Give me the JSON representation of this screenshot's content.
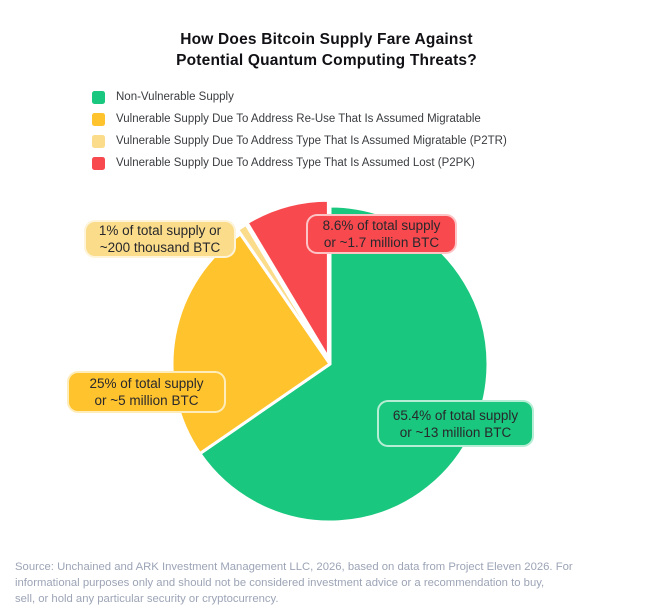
{
  "title": {
    "line1": "How Does Bitcoin Supply Fare Against",
    "line2": "Potential Quantum Computing Threats?"
  },
  "legend": {
    "items": [
      {
        "label": "Non-Vulnerable Supply",
        "color": "#1ac77e"
      },
      {
        "label": "Vulnerable Supply Due To Address Re-Use That Is Assumed Migratable",
        "color": "#ffc32d"
      },
      {
        "label": "Vulnerable Supply Due To Address Type That Is Assumed Migratable (P2TR)",
        "color": "#fbdc8b"
      },
      {
        "label": "Vulnerable Supply Due To Address Type That Is Assumed Lost (P2PK)",
        "color": "#f8494f"
      }
    ]
  },
  "chart_data": {
    "type": "pie",
    "title": "How Does Bitcoin Supply Fare Against Potential Quantum Computing Threats?",
    "units": "percent of total Bitcoin supply",
    "direction": "clockwise",
    "start_angle_deg": 0,
    "legend_position": "top-left",
    "slices": [
      {
        "id": "non-vulnerable",
        "label": "Non-Vulnerable Supply",
        "pct": 65.4,
        "amount": "~13 million BTC",
        "color": "#1ac77e",
        "offset": 0
      },
      {
        "id": "reuse-migratable",
        "label": "Vulnerable Supply Due To Address Re-Use That Is Assumed Migratable",
        "pct": 25,
        "amount": "~5 million BTC",
        "color": "#ffc32d",
        "offset": 0
      },
      {
        "id": "p2tr-migratable",
        "label": "Vulnerable Supply Due To Address Type That Is Assumed Migratable (P2TR)",
        "pct": 1,
        "amount": "~200 thousand BTC",
        "color": "#fbdc8b",
        "offset": 5
      },
      {
        "id": "p2pk-lost",
        "label": "Vulnerable Supply Due To Address Type That Is Assumed Lost (P2PK)",
        "pct": 8.6,
        "amount": "~1.7 million BTC",
        "color": "#f8494f",
        "offset": 6
      }
    ]
  },
  "callouts": [
    {
      "line1": "8.6% of total supply",
      "line2": "or ~1.7 million BTC",
      "color": "#f8494f"
    },
    {
      "line1": "1% of total supply or",
      "line2": "~200 thousand BTC",
      "color": "#fbdc8b"
    },
    {
      "line1": "25% of total supply",
      "line2": "or ~5 million BTC",
      "color": "#ffc32d"
    },
    {
      "line1": "65.4% of total supply",
      "line2": "or ~13 million BTC",
      "color": "#1ac77e"
    }
  ],
  "source": {
    "lines": [
      "Source: Unchained and ARK Investment Management LLC, 2026, based on data from Project Eleven 2026. For",
      "informational purposes only and should not be considered investment advice or a recommendation to buy,",
      "sell, or hold any particular security or cryptocurrency."
    ]
  }
}
